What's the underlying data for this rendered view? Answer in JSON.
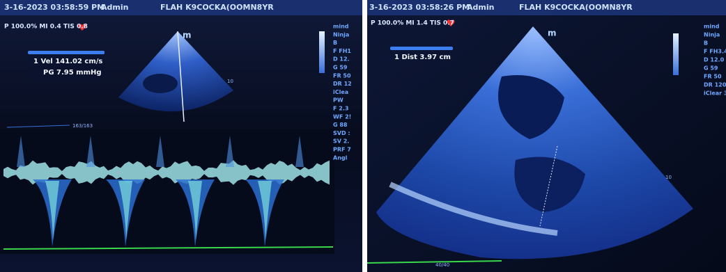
{
  "left_screen": {
    "header": {
      "timestamp": "3-16-2023 03:58:59 PM",
      "user": "Admin",
      "patient": "FLAH K9COCKA(OOMN8YR"
    },
    "status": "P 100.0% MI 0.4 TIS 0.8",
    "measurements": [
      "1 Vel 141.02 cm/s",
      "PG 7.95 mmHg"
    ],
    "probe_mark": "m",
    "depth_label": "10",
    "sweep_label": "163/163",
    "side_panel": [
      "mind",
      "Ninja",
      "B",
      "F FH1",
      "D 12.",
      "G 59",
      "FR 50",
      "DR 12",
      "iClea",
      "PW",
      "F 2.3",
      "WF 2!",
      "G 88",
      "SVD :",
      "SV 2.",
      "PRF 7",
      "Angl"
    ]
  },
  "right_screen": {
    "header": {
      "timestamp": "3-16-2023 03:58:26 PM",
      "user": "Admin",
      "patient": "FLAH K9COCKA(OOMN8YR"
    },
    "status": "P 100.0% MI 1.4 TIS 0.7",
    "measurements": [
      "1 Dist 3.97 cm"
    ],
    "probe_mark": "m",
    "depth_label": "10",
    "sweep_label": "40/40",
    "side_panel": [
      "mind",
      "Ninja",
      "B",
      "F FH3.4",
      "D 12.0",
      "G 59",
      "FR 50",
      "DR 120",
      "iClear 3"
    ]
  }
}
